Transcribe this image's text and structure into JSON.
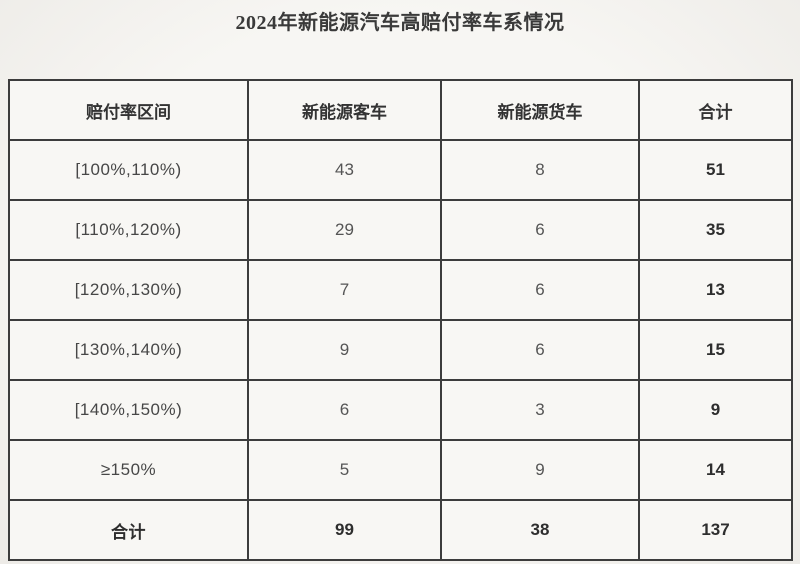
{
  "title": "2024年新能源汽车高赔付率车系情况",
  "table": {
    "headers": [
      "赔付率区间",
      "新能源客车",
      "新能源货车",
      "合计"
    ],
    "rows": [
      [
        "[100%,110%)",
        "43",
        "8",
        "51"
      ],
      [
        "[110%,120%)",
        "29",
        "6",
        "35"
      ],
      [
        "[120%,130%)",
        "7",
        "6",
        "13"
      ],
      [
        "[130%,140%)",
        "9",
        "6",
        "15"
      ],
      [
        "[140%,150%)",
        "6",
        "3",
        "9"
      ],
      [
        "≥150%",
        "5",
        "9",
        "14"
      ],
      [
        "合计",
        "99",
        "38",
        "137"
      ]
    ]
  },
  "colors": {
    "page_background": "#f4f2ef",
    "cell_background": "#f8f7f4",
    "border": "#3c3c3c",
    "title_text": "#3a3a3a",
    "body_text": "#474747",
    "total_text": "#2e2e2e"
  }
}
